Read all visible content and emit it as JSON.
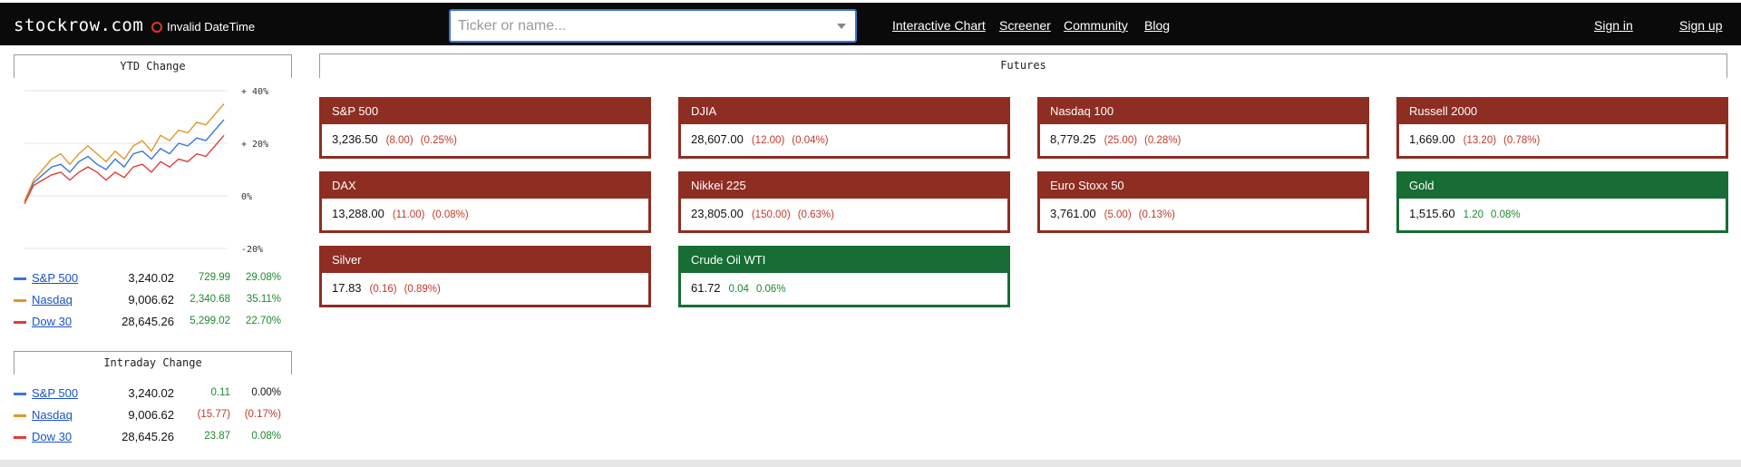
{
  "header": {
    "logo": "stockrow.com",
    "datetime_status": "Invalid DateTime",
    "search_placeholder": "Ticker or name...",
    "nav": [
      "Interactive Chart",
      "Screener",
      "Community",
      "Blog"
    ],
    "sign_in": "Sign in",
    "sign_up": "Sign up"
  },
  "ytd": {
    "title": "YTD Change",
    "rows": [
      {
        "name": "S&P 500",
        "price": "3,240.02",
        "change": "729.99",
        "pct": "29.08%",
        "color": "#3b74e0",
        "trend": "pos"
      },
      {
        "name": "Nasdaq",
        "price": "9,006.62",
        "change": "2,340.68",
        "pct": "35.11%",
        "color": "#e0962a",
        "trend": "pos"
      },
      {
        "name": "Dow 30",
        "price": "28,645.26",
        "change": "5,299.02",
        "pct": "22.70%",
        "color": "#e23b3b",
        "trend": "pos"
      }
    ]
  },
  "chart_data": {
    "type": "line",
    "title": "YTD Change",
    "ylabel": "",
    "xlabel": "",
    "ylim": [
      -20,
      40
    ],
    "y_ticks": [
      "+ 40%",
      "+ 20%",
      "0%",
      "-20%"
    ],
    "grid": true,
    "series": [
      {
        "name": "S&P 500",
        "color": "#3b74e0",
        "values": [
          -2,
          5,
          8,
          11,
          12,
          9,
          13,
          15,
          12,
          10,
          14,
          11,
          16,
          17,
          14,
          18,
          16,
          20,
          19,
          22,
          21,
          25,
          29
        ]
      },
      {
        "name": "Nasdaq",
        "color": "#e0962a",
        "values": [
          -2,
          6,
          10,
          14,
          16,
          12,
          16,
          19,
          16,
          13,
          17,
          14,
          19,
          21,
          17,
          23,
          21,
          25,
          24,
          28,
          27,
          31,
          35
        ]
      },
      {
        "name": "Dow 30",
        "color": "#e23b3b",
        "values": [
          -3,
          4,
          6,
          8,
          9,
          6,
          9,
          11,
          9,
          6,
          9,
          7,
          11,
          12,
          9,
          13,
          11,
          14,
          13,
          16,
          15,
          19,
          23
        ]
      }
    ]
  },
  "intraday": {
    "title": "Intraday Change",
    "rows": [
      {
        "name": "S&P 500",
        "price": "3,240.02",
        "change": "0.11",
        "pct": "0.00%",
        "color": "#3b74e0",
        "chg_trend": "pos",
        "pct_trend": "neutral"
      },
      {
        "name": "Nasdaq",
        "price": "9,006.62",
        "change": "(15.77)",
        "pct": "(0.17%)",
        "color": "#e0962a",
        "chg_trend": "neg",
        "pct_trend": "neg"
      },
      {
        "name": "Dow 30",
        "price": "28,645.26",
        "change": "23.87",
        "pct": "0.08%",
        "color": "#e23b3b",
        "chg_trend": "pos",
        "pct_trend": "pos"
      }
    ]
  },
  "futures": {
    "title": "Futures",
    "items": [
      {
        "name": "S&P 500",
        "value": "3,236.50",
        "change": "(8.00)",
        "pct": "(0.25%)",
        "trend": "down"
      },
      {
        "name": "DJIA",
        "value": "28,607.00",
        "change": "(12.00)",
        "pct": "(0.04%)",
        "trend": "down"
      },
      {
        "name": "Nasdaq 100",
        "value": "8,779.25",
        "change": "(25.00)",
        "pct": "(0.28%)",
        "trend": "down"
      },
      {
        "name": "Russell 2000",
        "value": "1,669.00",
        "change": "(13.20)",
        "pct": "(0.78%)",
        "trend": "down"
      },
      {
        "name": "DAX",
        "value": "13,288.00",
        "change": "(11.00)",
        "pct": "(0.08%)",
        "trend": "down"
      },
      {
        "name": "Nikkei 225",
        "value": "23,805.00",
        "change": "(150.00)",
        "pct": "(0.63%)",
        "trend": "down"
      },
      {
        "name": "Euro Stoxx 50",
        "value": "3,761.00",
        "change": "(5.00)",
        "pct": "(0.13%)",
        "trend": "down"
      },
      {
        "name": "Gold",
        "value": "1,515.60",
        "change": "1.20",
        "pct": "0.08%",
        "trend": "up"
      },
      {
        "name": "Silver",
        "value": "17.83",
        "change": "(0.16)",
        "pct": "(0.89%)",
        "trend": "down"
      },
      {
        "name": "Crude Oil WTI",
        "value": "61.72",
        "change": "0.04",
        "pct": "0.06%",
        "trend": "up"
      }
    ]
  },
  "colors": {
    "down": "#8e2d22",
    "up": "#176d33",
    "link": "#1a52c7"
  }
}
